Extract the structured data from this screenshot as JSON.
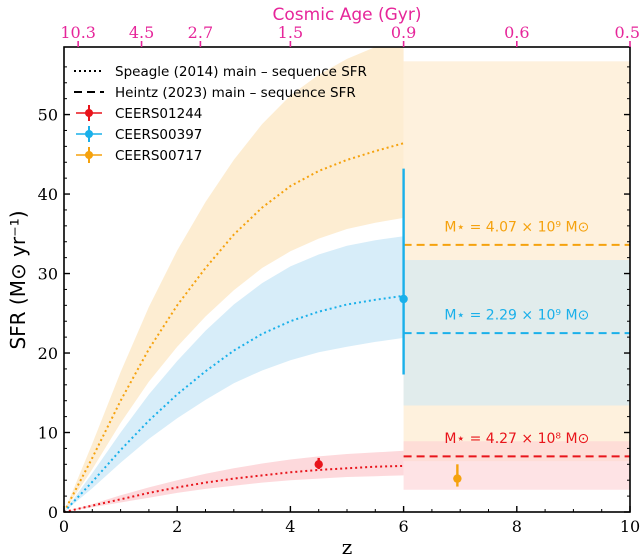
{
  "chart_data": {
    "type": "line",
    "top_axis": {
      "label": "Cosmic Age (Gyr)",
      "ticks": [
        {
          "z": 0.25,
          "label": "10.3"
        },
        {
          "z": 1.37,
          "label": "4.5"
        },
        {
          "z": 2.41,
          "label": "2.7"
        },
        {
          "z": 4.0,
          "label": "1.5"
        },
        {
          "z": 6.0,
          "label": "0.9"
        },
        {
          "z": 8.0,
          "label": "0.6"
        },
        {
          "z": 10.0,
          "label": "0.5"
        }
      ],
      "color": "#e6259a"
    },
    "xlabel": "z",
    "ylabel": "SFR (M⊙ yr⁻¹)",
    "xlim": [
      0,
      10
    ],
    "ylim": [
      0,
      58.5
    ],
    "xticks": [
      "0",
      "2",
      "4",
      "6",
      "8",
      "10"
    ],
    "yticks": [
      "0",
      "10",
      "20",
      "30",
      "40",
      "50"
    ],
    "legend": {
      "placement": "top-left",
      "entries": [
        {
          "label": "Speagle (2014) main – sequence SFR",
          "style": "dotted",
          "color": "#000000"
        },
        {
          "label": "Heintz (2023) main – sequence SFR",
          "style": "dashed",
          "color": "#000000"
        },
        {
          "label": "CEERS01244",
          "style": "errorbar",
          "color": "#e8141b"
        },
        {
          "label": "CEERS00397",
          "style": "errorbar",
          "color": "#1ab0ea"
        },
        {
          "label": "CEERS00717",
          "style": "errorbar",
          "color": "#f5a20e"
        }
      ]
    },
    "series": [
      {
        "name": "CEERS00717",
        "color": "#f5a20e",
        "band_color": "#fde8c7",
        "speagle": {
          "x": [
            0,
            0.5,
            1,
            1.5,
            2,
            2.5,
            3,
            3.5,
            4,
            4.5,
            5,
            5.5,
            6
          ],
          "y": [
            0.0,
            6.8,
            14.0,
            20.5,
            26.0,
            30.7,
            34.9,
            38.3,
            41.0,
            42.9,
            44.3,
            45.4,
            46.4
          ],
          "lower": [
            0.0,
            5.4,
            11.2,
            16.4,
            20.8,
            24.6,
            27.9,
            30.7,
            32.8,
            34.4,
            35.6,
            36.4,
            37.0
          ],
          "upper": [
            0.0,
            8.6,
            17.6,
            25.8,
            32.9,
            39.0,
            44.3,
            48.8,
            52.4,
            55.0,
            57.0,
            58.5,
            58.5
          ]
        },
        "heintz": {
          "x": [
            6,
            10
          ],
          "y": 33.6,
          "range": [
            6.4,
            56.7
          ]
        },
        "point": {
          "z": 6.95,
          "sfr": 4.2,
          "err_low": 1.0,
          "err_high": 1.8
        },
        "annotation": {
          "text": "M⋆ = 4.07 × 10⁹ M⊙",
          "z": 8.0,
          "sfr": 35.3
        }
      },
      {
        "name": "CEERS00397",
        "color": "#1ab0ea",
        "band_color": "#cde9f7",
        "speagle": {
          "x": [
            0,
            0.5,
            1,
            1.5,
            2,
            2.5,
            3,
            3.5,
            4,
            4.5,
            5,
            5.5,
            6
          ],
          "y": [
            0.0,
            3.8,
            7.8,
            11.5,
            14.8,
            17.7,
            20.3,
            22.4,
            24.0,
            25.2,
            26.1,
            26.7,
            27.2
          ],
          "lower": [
            0.0,
            3.0,
            6.2,
            9.2,
            11.8,
            14.1,
            16.2,
            17.8,
            19.1,
            20.1,
            20.8,
            21.4,
            21.9
          ],
          "upper": [
            0.0,
            4.9,
            10.0,
            14.8,
            19.0,
            22.8,
            26.1,
            28.8,
            30.9,
            32.4,
            33.5,
            34.2,
            34.7
          ]
        },
        "heintz": {
          "x": [
            6,
            10
          ],
          "y": 22.5,
          "range": [
            13.4,
            31.7
          ]
        },
        "point": {
          "z": 6.0,
          "sfr": 26.8,
          "err_low": 9.5,
          "err_high": 16.4
        },
        "annotation": {
          "text": "M⋆ = 2.29 × 10⁹ M⊙",
          "z": 8.0,
          "sfr": 24.2
        }
      },
      {
        "name": "CEERS01244",
        "color": "#e8141b",
        "band_color": "#fdd0d3",
        "speagle": {
          "x": [
            0,
            0.5,
            1,
            1.5,
            2,
            2.5,
            3,
            3.5,
            4,
            4.5,
            5,
            5.5,
            6
          ],
          "y": [
            0.0,
            0.8,
            1.6,
            2.4,
            3.1,
            3.7,
            4.2,
            4.6,
            5.0,
            5.3,
            5.5,
            5.7,
            5.8
          ],
          "lower": [
            0.0,
            0.6,
            1.2,
            1.8,
            2.4,
            2.9,
            3.3,
            3.7,
            4.0,
            4.2,
            4.4,
            4.5,
            4.6
          ],
          "upper": [
            0.0,
            1.0,
            2.1,
            3.1,
            4.0,
            4.8,
            5.5,
            6.1,
            6.6,
            7.0,
            7.3,
            7.5,
            7.7
          ]
        },
        "heintz": {
          "x": [
            6,
            10
          ],
          "y": 7.0,
          "range": [
            2.8,
            8.9
          ]
        },
        "point": {
          "z": 4.5,
          "sfr": 6.0,
          "err_low": 0.6,
          "err_high": 0.8
        },
        "annotation": {
          "text": "M⋆ = 4.27 × 10⁸ M⊙",
          "z": 8.0,
          "sfr": 8.7
        }
      }
    ]
  }
}
